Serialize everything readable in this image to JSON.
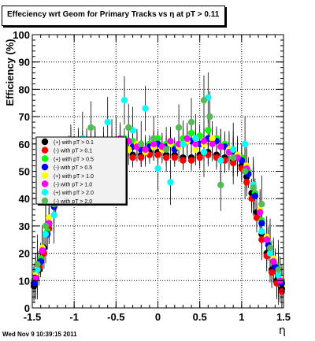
{
  "title": "Effeciency wrt Geom for Primary Tracks vs   η at pT > 0.11",
  "footer": "Wed Nov  9 10:39:15 2011",
  "chart_data": {
    "type": "scatter",
    "xlabel": "η",
    "ylabel": "Efficiency (%)",
    "xlim": [
      -1.5,
      1.5
    ],
    "ylim": [
      0,
      100
    ],
    "x_ticks": [
      "-1.5",
      "-1",
      "-0.5",
      "0",
      "0.5",
      "1",
      "1.5"
    ],
    "y_ticks": [
      "0",
      "10",
      "20",
      "30",
      "40",
      "50",
      "60",
      "70",
      "80",
      "90",
      "100"
    ],
    "grid": true,
    "legend_position": "left-middle",
    "series": [
      {
        "name": "(+) with pT > 0.1",
        "color": "#000000",
        "x": [
          -1.48,
          -1.42,
          -1.36,
          -1.3,
          -1.24,
          -1.18,
          -1.12,
          -1.06,
          -1.0,
          -0.9,
          -0.8,
          -0.7,
          -0.6,
          -0.5,
          -0.4,
          -0.3,
          -0.2,
          -0.1,
          0.0,
          0.1,
          0.2,
          0.3,
          0.4,
          0.5,
          0.6,
          0.7,
          0.8,
          0.9,
          1.0,
          1.06,
          1.12,
          1.18,
          1.24,
          1.3,
          1.36,
          1.42,
          1.48
        ],
        "y": [
          8,
          14,
          22,
          31,
          40,
          48,
          54,
          57,
          58,
          58,
          58,
          57,
          57,
          58,
          57,
          56,
          56,
          57,
          57,
          56,
          56,
          55,
          55,
          56,
          57,
          56,
          55,
          54,
          52,
          48,
          42,
          35,
          27,
          20,
          14,
          10,
          7
        ]
      },
      {
        "name": "(-) with pT > 0.1",
        "color": "#ff0000",
        "x": [
          -1.48,
          -1.42,
          -1.36,
          -1.3,
          -1.24,
          -1.18,
          -1.12,
          -1.06,
          -1.0,
          -0.9,
          -0.8,
          -0.7,
          -0.6,
          -0.5,
          -0.4,
          -0.3,
          -0.2,
          -0.1,
          0.0,
          0.1,
          0.2,
          0.3,
          0.4,
          0.5,
          0.6,
          0.7,
          0.8,
          0.9,
          1.0,
          1.06,
          1.12,
          1.18,
          1.24,
          1.3,
          1.36,
          1.42,
          1.48
        ],
        "y": [
          9,
          15,
          20,
          29,
          39,
          47,
          53,
          56,
          57,
          57,
          57,
          56,
          56,
          57,
          56,
          55,
          55,
          56,
          56,
          55,
          55,
          54,
          54,
          55,
          56,
          55,
          54,
          53,
          51,
          46,
          40,
          33,
          25,
          19,
          13,
          9,
          6
        ]
      },
      {
        "name": "(+) with pT > 0.5",
        "color": "#00ff00",
        "x": [
          -1.48,
          -1.4,
          -1.32,
          -1.24,
          -1.16,
          -1.08,
          -1.0,
          -0.9,
          -0.8,
          -0.7,
          -0.6,
          -0.5,
          -0.4,
          -0.3,
          -0.2,
          -0.1,
          0.0,
          0.1,
          0.2,
          0.3,
          0.4,
          0.5,
          0.6,
          0.7,
          0.8,
          0.9,
          1.0,
          1.08,
          1.16,
          1.24,
          1.32,
          1.4,
          1.48
        ],
        "y": [
          10,
          18,
          28,
          38,
          48,
          55,
          58,
          60,
          60,
          58,
          57,
          59,
          62,
          61,
          58,
          60,
          62,
          60,
          59,
          62,
          64,
          63,
          65,
          62,
          60,
          58,
          55,
          50,
          42,
          32,
          24,
          16,
          10
        ]
      },
      {
        "name": "(-) with pT > 0.5",
        "color": "#0000ff",
        "x": [
          -1.48,
          -1.4,
          -1.32,
          -1.24,
          -1.16,
          -1.08,
          -1.0,
          -0.9,
          -0.8,
          -0.7,
          -0.6,
          -0.5,
          -0.4,
          -0.3,
          -0.2,
          -0.1,
          0.0,
          0.1,
          0.2,
          0.3,
          0.4,
          0.5,
          0.6,
          0.7,
          0.8,
          0.9,
          1.0,
          1.08,
          1.16,
          1.24,
          1.32,
          1.4,
          1.48
        ],
        "y": [
          9,
          17,
          27,
          37,
          47,
          54,
          57,
          59,
          59,
          58,
          57,
          58,
          60,
          59,
          58,
          59,
          60,
          59,
          58,
          60,
          61,
          60,
          62,
          61,
          59,
          57,
          54,
          49,
          41,
          31,
          23,
          15,
          9
        ]
      },
      {
        "name": "(+) with pT > 1.0",
        "color": "#ffff00",
        "x": [
          -1.46,
          -1.38,
          -1.3,
          -1.22,
          -1.14,
          -1.06,
          -0.95,
          -0.85,
          -0.75,
          -0.65,
          -0.55,
          -0.45,
          -0.35,
          -0.25,
          -0.15,
          -0.05,
          0.05,
          0.15,
          0.25,
          0.35,
          0.45,
          0.55,
          0.65,
          0.75,
          0.85,
          0.95,
          1.06,
          1.14,
          1.22,
          1.3,
          1.38,
          1.46
        ],
        "y": [
          12,
          22,
          33,
          43,
          51,
          56,
          59,
          58,
          60,
          57,
          59,
          61,
          58,
          60,
          57,
          59,
          58,
          60,
          59,
          61,
          58,
          60,
          62,
          59,
          58,
          56,
          52,
          45,
          36,
          26,
          18,
          11
        ]
      },
      {
        "name": "(-) with pT > 1.0",
        "color": "#ff00ff",
        "x": [
          -1.46,
          -1.38,
          -1.3,
          -1.22,
          -1.14,
          -1.06,
          -0.95,
          -0.85,
          -0.75,
          -0.65,
          -0.55,
          -0.45,
          -0.35,
          -0.25,
          -0.15,
          -0.05,
          0.05,
          0.15,
          0.25,
          0.35,
          0.45,
          0.55,
          0.65,
          0.75,
          0.85,
          0.95,
          1.06,
          1.14,
          1.22,
          1.3,
          1.38,
          1.46
        ],
        "y": [
          11,
          21,
          31,
          42,
          50,
          55,
          58,
          59,
          59,
          58,
          60,
          62,
          61,
          59,
          58,
          60,
          59,
          61,
          60,
          62,
          60,
          61,
          60,
          59,
          57,
          55,
          51,
          44,
          35,
          25,
          17,
          10
        ]
      },
      {
        "name": "(+) with pT > 2.0",
        "color": "#00ffff",
        "x": [
          -1.44,
          -1.34,
          -1.24,
          -1.14,
          -1.04,
          -0.9,
          -0.75,
          -0.6,
          -0.55,
          -0.4,
          -0.3,
          -0.15,
          0.0,
          0.15,
          0.3,
          0.45,
          0.55,
          0.6,
          0.75,
          0.9,
          1.04,
          1.14,
          1.24,
          1.34,
          1.44
        ],
        "y": [
          14,
          27,
          34,
          50,
          56,
          62,
          55,
          68,
          60,
          76,
          65,
          73,
          51,
          46,
          60,
          62,
          57,
          77,
          54,
          58,
          60,
          45,
          28,
          20,
          12
        ]
      },
      {
        "name": "(-) with pT > 2.0",
        "color": "#55bb55",
        "x": [
          -1.44,
          -1.34,
          -1.24,
          -1.14,
          -1.04,
          -0.8,
          -0.65,
          -0.5,
          -0.35,
          -0.2,
          -0.05,
          0.1,
          0.25,
          0.4,
          0.55,
          0.62,
          0.75,
          0.9,
          1.04,
          1.14,
          1.24,
          1.34,
          1.44
        ],
        "y": [
          16,
          30,
          38,
          48,
          57,
          66,
          57,
          61,
          66,
          60,
          62,
          58,
          66,
          68,
          76,
          70,
          45,
          55,
          50,
          44,
          38,
          22,
          14
        ]
      }
    ]
  }
}
